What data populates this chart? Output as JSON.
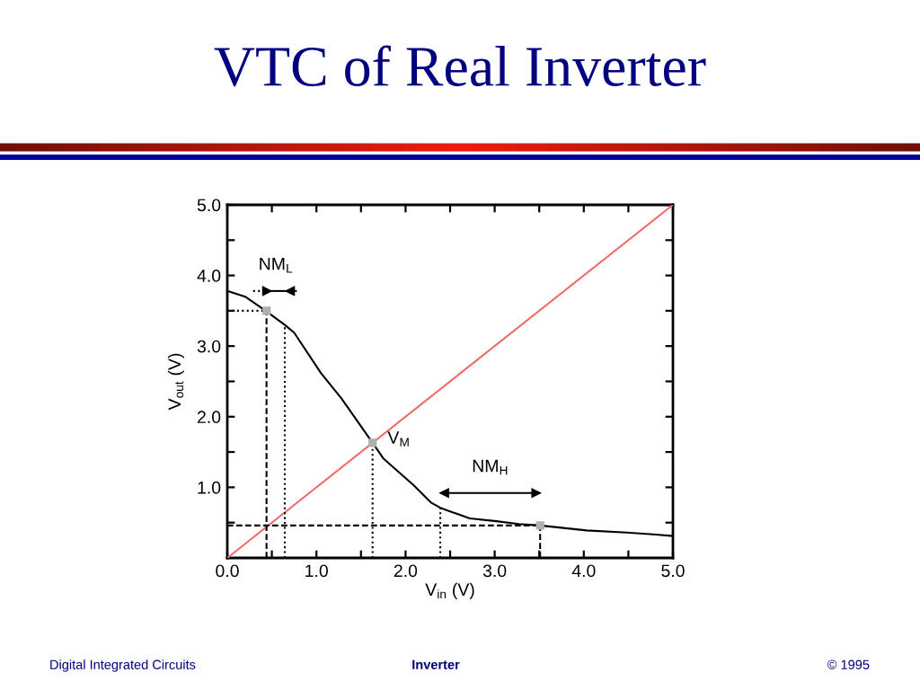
{
  "chart_data": {
    "type": "line",
    "title": "VTC of Real Inverter",
    "xlabel": "V$_{in}$ (V)",
    "ylabel": "V$_{out}$ (V)",
    "xlim": [
      0,
      5
    ],
    "ylim": [
      0,
      5
    ],
    "xticks": [
      {
        "value": 0,
        "label": "0.0"
      },
      {
        "value": 0.5,
        "label": null
      },
      {
        "value": 1,
        "label": "1.0"
      },
      {
        "value": 1.5,
        "label": null
      },
      {
        "value": 2,
        "label": "2.0"
      },
      {
        "value": 2.5,
        "label": null
      },
      {
        "value": 3,
        "label": "3.0"
      },
      {
        "value": 3.5,
        "label": null
      },
      {
        "value": 4,
        "label": "4.0"
      },
      {
        "value": 4.5,
        "label": null
      },
      {
        "value": 5,
        "label": "5.0"
      }
    ],
    "yticks": [
      {
        "value": 0.5,
        "label": null
      },
      {
        "value": 1,
        "label": "1.0"
      },
      {
        "value": 1.5,
        "label": null
      },
      {
        "value": 2,
        "label": "2.0"
      },
      {
        "value": 2.5,
        "label": null
      },
      {
        "value": 3,
        "label": "3.0"
      },
      {
        "value": 3.5,
        "label": null
      },
      {
        "value": 4,
        "label": "4.0"
      },
      {
        "value": 4.5,
        "label": null
      },
      {
        "value": 5,
        "label": "5.0"
      }
    ],
    "series": [
      {
        "color": "#f06c6c",
        "x": [
          0,
          5
        ],
        "values": [
          0,
          5
        ]
      },
      {
        "color": "#000000",
        "x": [
          0,
          0.2,
          0.44,
          0.645,
          0.75,
          1.05,
          1.28,
          1.63,
          1.75,
          2.09,
          2.29,
          2.39,
          2.52,
          2.72,
          3.02,
          3.27,
          3.51,
          4.03,
          4.48,
          4.81,
          5.0
        ],
        "values": [
          3.78,
          3.7,
          3.49,
          3.3,
          3.19,
          2.62,
          2.26,
          1.63,
          1.41,
          1.03,
          0.78,
          0.71,
          0.65,
          0.56,
          0.52,
          0.48,
          0.46,
          0.39,
          0.36,
          0.33,
          0.31
        ]
      },
      {
        "color": "#000000",
        "line_style": "dashed",
        "x": [
          0.44,
          0.44
        ],
        "values": [
          0,
          3.5
        ]
      },
      {
        "color": "#000000",
        "line_style": "dotted",
        "x": [
          0,
          0.44
        ],
        "values": [
          3.5,
          3.5
        ]
      },
      {
        "color": "#000000",
        "line_style": "dotted",
        "x": [
          0.645,
          0.645
        ],
        "values": [
          0,
          3.3
        ]
      },
      {
        "color": "#000000",
        "line_style": "dotted",
        "x": [
          1.63,
          1.63
        ],
        "values": [
          0,
          1.63
        ]
      },
      {
        "color": "#000000",
        "line_style": "dotted",
        "x": [
          2.39,
          2.39
        ],
        "values": [
          0,
          0.71
        ]
      },
      {
        "color": "#000000",
        "line_style": "dashed",
        "x": [
          0,
          3.51
        ],
        "values": [
          0.46,
          0.46
        ]
      },
      {
        "color": "#000000",
        "line_style": "dashed",
        "x": [
          3.51,
          3.51
        ],
        "values": [
          0,
          0.46
        ]
      },
      {
        "color": "#000000",
        "line_style": "dotted",
        "marker": "triangle",
        "x": [
          0.29,
          0.45
        ],
        "values": [
          3.78,
          3.78
        ]
      },
      {
        "color": "#000000",
        "line_style": "dotted",
        "marker": "triangle",
        "x": [
          0.78,
          0.7
        ],
        "values": [
          3.78,
          3.78
        ]
      },
      {
        "color": "#000000",
        "x": [
          0.45,
          0.7
        ],
        "values": [
          3.78,
          3.78
        ]
      },
      {
        "color": "#000000",
        "marker": "triangle",
        "x": [
          2.95,
          2.43,
          3.47
        ],
        "values": [
          0.92,
          0.92,
          0.92
        ]
      },
      {
        "type": "scatter",
        "marker": "square",
        "color": "#b0b0b0",
        "x": [
          0.44,
          1.63,
          3.51
        ],
        "values": [
          3.5,
          1.63,
          0.46
        ]
      }
    ],
    "annotations": [
      {
        "text": "NM$_{L}$",
        "x": 0.545,
        "y": 3.78
      },
      {
        "text": "V$_{M}$",
        "x": 1.63,
        "y": 1.63
      },
      {
        "text": "NM$_{H}$",
        "x": 2.95,
        "y": 0.92
      },
      "Digital Integrated Circuits",
      "Inverter",
      "© 1995"
    ]
  }
}
